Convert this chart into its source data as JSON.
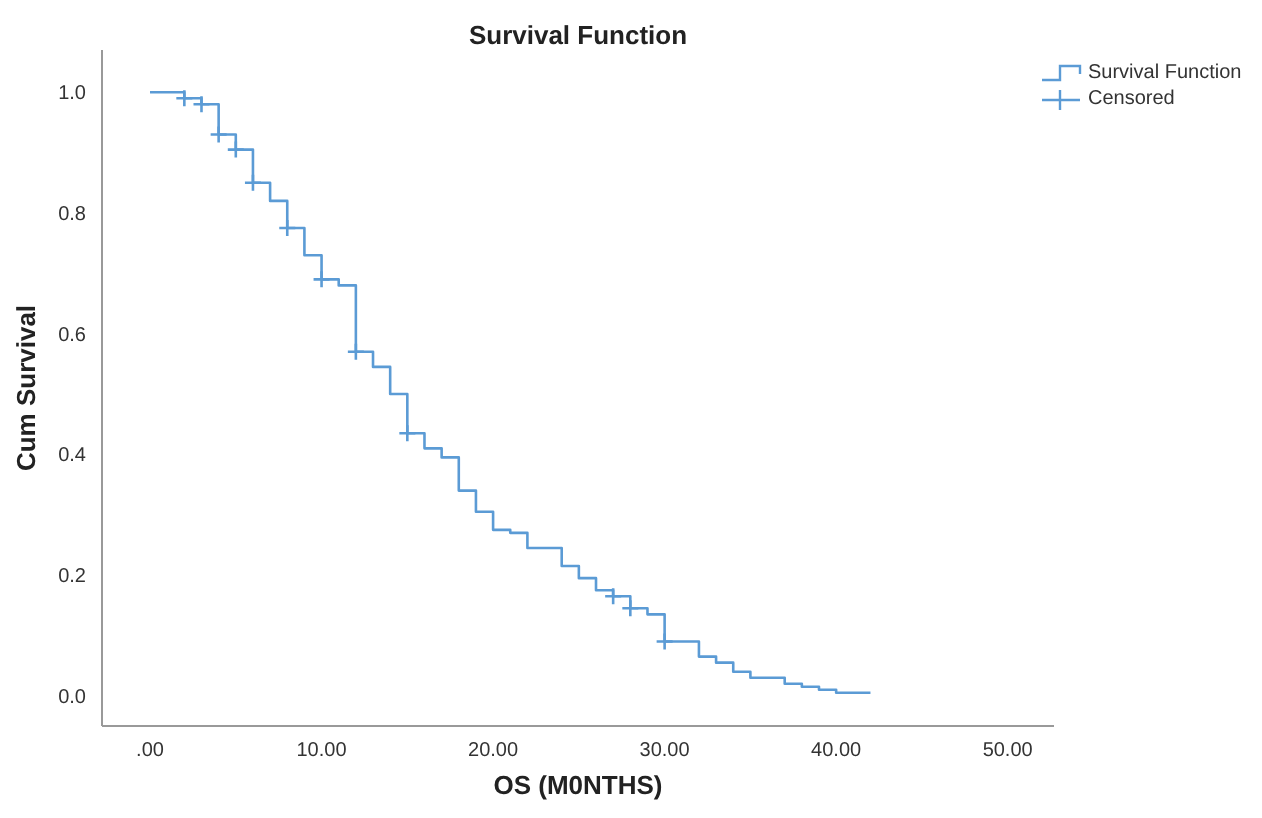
{
  "chart_data": {
    "type": "step",
    "title": "Survival Function",
    "xlabel": "OS (M0NTHS)",
    "ylabel": "Cum Survival",
    "xlim": [
      -2.8,
      52.7
    ],
    "ylim": [
      -0.05,
      1.07
    ],
    "xticks": [
      {
        "value": 0,
        "label": ".00"
      },
      {
        "value": 10,
        "label": "10.00"
      },
      {
        "value": 20,
        "label": "20.00"
      },
      {
        "value": 30,
        "label": "30.00"
      },
      {
        "value": 40,
        "label": "40.00"
      },
      {
        "value": 50,
        "label": "50.00"
      }
    ],
    "yticks": [
      {
        "value": 0,
        "label": "0.0"
      },
      {
        "value": 0.2,
        "label": "0.2"
      },
      {
        "value": 0.4,
        "label": "0.4"
      },
      {
        "value": 0.6,
        "label": "0.6"
      },
      {
        "value": 0.8,
        "label": "0.8"
      },
      {
        "value": 1,
        "label": "1.0"
      }
    ],
    "grid": false,
    "legend": "top right",
    "series": [
      {
        "name": "Survival Function",
        "color": "#5b9bd5",
        "marker": "none",
        "x": [
          0,
          2,
          3,
          4,
          5,
          6,
          7,
          8,
          9,
          10,
          11,
          12,
          13,
          14,
          15,
          16,
          17,
          18,
          19,
          20,
          21,
          22,
          24,
          25,
          26,
          27,
          28,
          29,
          30,
          32,
          33,
          34,
          35,
          37,
          38,
          39,
          40,
          42
        ],
        "values": [
          1,
          0.99,
          0.98,
          0.93,
          0.905,
          0.85,
          0.82,
          0.775,
          0.73,
          0.69,
          0.68,
          0.57,
          0.545,
          0.5,
          0.435,
          0.41,
          0.395,
          0.34,
          0.305,
          0.275,
          0.27,
          0.245,
          0.215,
          0.195,
          0.175,
          0.165,
          0.145,
          0.135,
          0.09,
          0.065,
          0.055,
          0.04,
          0.03,
          0.02,
          0.015,
          0.01,
          0.005,
          0.005
        ]
      },
      {
        "name": "Censored",
        "type": "scatter",
        "color": "#5b9bd5",
        "marker": "cross",
        "x": [
          2,
          3,
          4,
          5,
          6,
          8,
          10,
          12,
          15,
          27,
          28,
          30
        ],
        "values": [
          0.99,
          0.98,
          0.93,
          0.905,
          0.85,
          0.775,
          0.69,
          0.57,
          0.435,
          0.165,
          0.145,
          0.09
        ]
      }
    ]
  }
}
